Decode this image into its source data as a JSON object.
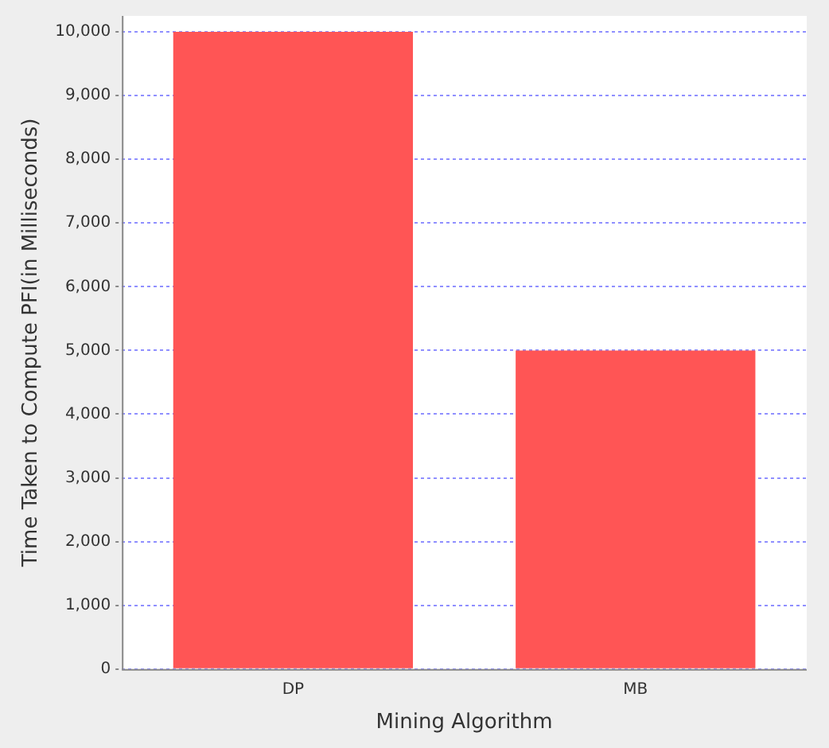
{
  "chart_data": {
    "type": "bar",
    "xlabel": "Mining Algorithm",
    "ylabel": "Time Taken to Compute PFI(in Milliseconds)",
    "categories": [
      "DP",
      "MB"
    ],
    "values": [
      10000,
      5000
    ],
    "color": "#ff5555",
    "ylim": [
      0,
      10250
    ],
    "yticks": [
      0,
      {
        "value": 1000,
        "label": "1,000"
      },
      {
        "value": 2000,
        "label": "2,000"
      },
      {
        "value": 3000,
        "label": "3,000"
      },
      {
        "value": 4000,
        "label": "4,000"
      },
      {
        "value": 5000,
        "label": "5,000"
      },
      {
        "value": 6000,
        "label": "6,000"
      },
      {
        "value": 7000,
        "label": "7,000"
      },
      {
        "value": 8000,
        "label": "8,000"
      },
      {
        "value": 9000,
        "label": "9,000"
      },
      {
        "value": 10000,
        "label": "10,000"
      }
    ],
    "grid": "y",
    "legend": false
  }
}
